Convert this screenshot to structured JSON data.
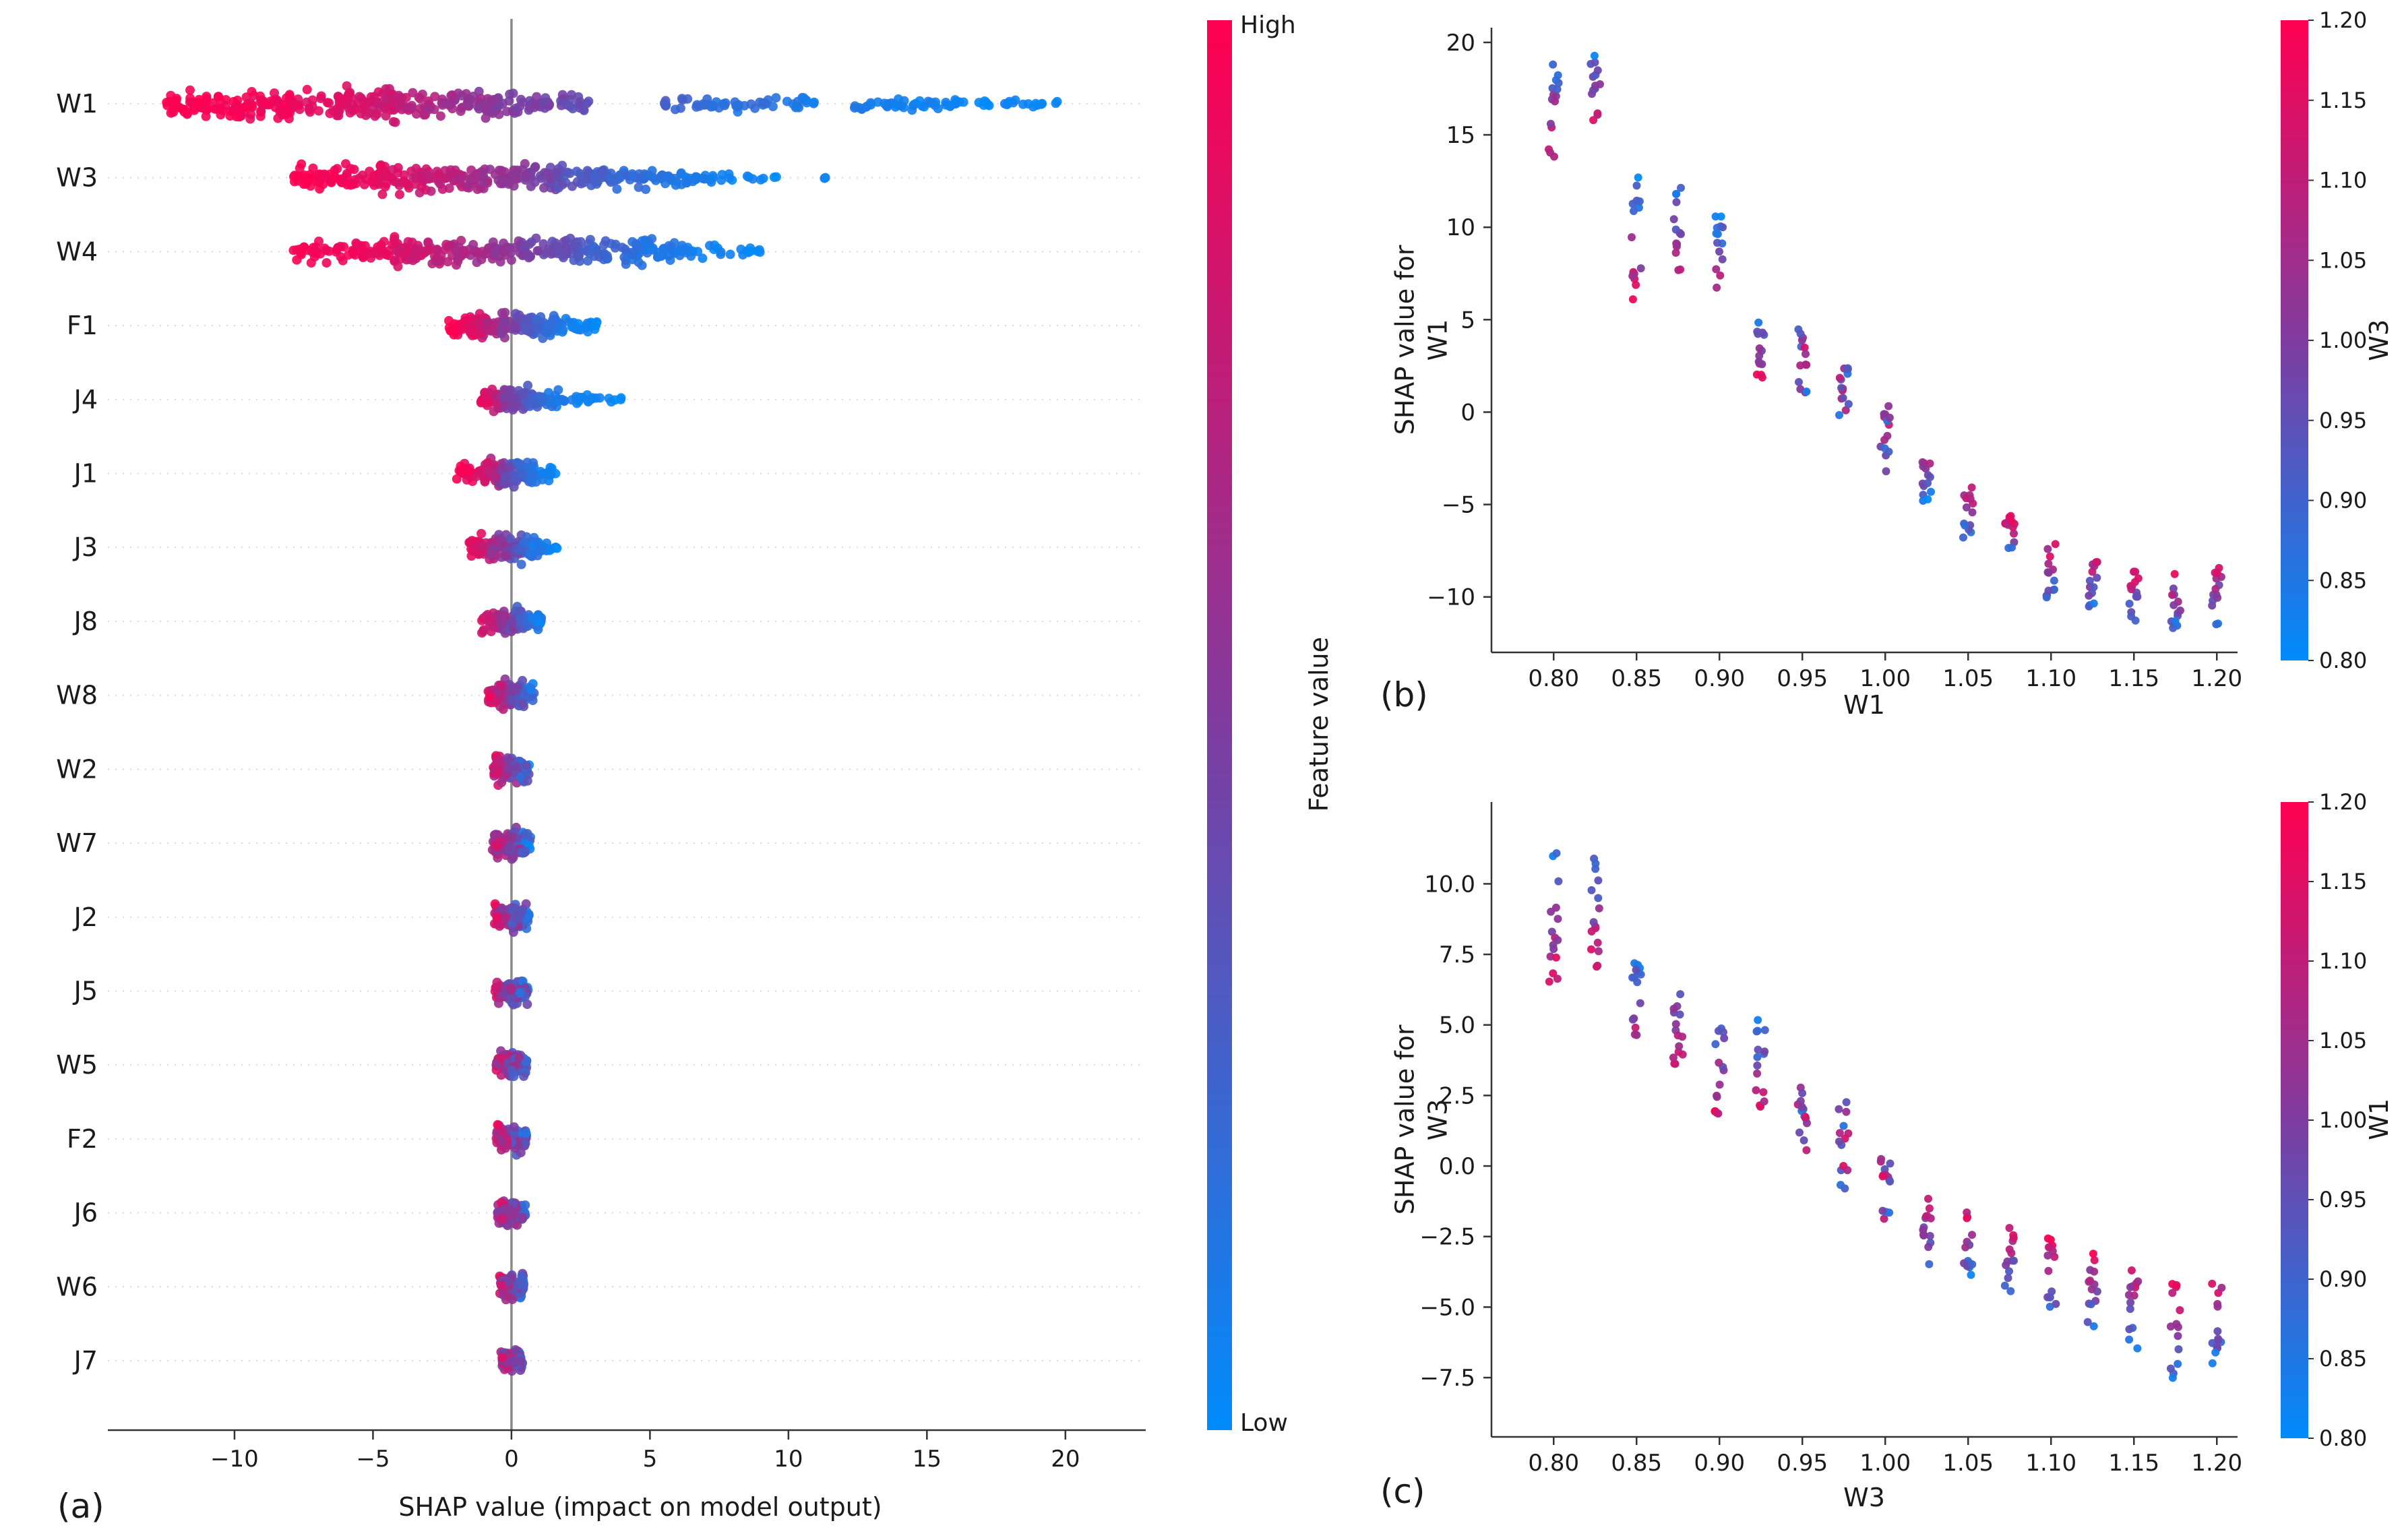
{
  "colors": {
    "background": "#ffffff",
    "text": "#1a1a1a",
    "axis_line": "#333333",
    "zero_line": "#8a8a8a",
    "grid_dotted": "#d9d9d9",
    "cmap_low": "#008bfb",
    "cmap_mid": "#7f3c9f",
    "cmap_high": "#ff0051"
  },
  "chart_data": [
    {
      "type": "scatter",
      "subtype": "shap_beeswarm_summary",
      "panel": "(a)",
      "xlabel": "SHAP value (impact on model output)",
      "xlim": [
        -13.6,
        22.9
      ],
      "x_ticks": [
        -10,
        -5,
        0,
        5,
        10,
        15,
        20
      ],
      "x_tick_labels": [
        "−10",
        "−5",
        "0",
        "5",
        "10",
        "15",
        "20"
      ],
      "colorbar": {
        "title": "Feature value",
        "high": "High",
        "low": "Low"
      },
      "grid": "dotted-horizontal",
      "features": [
        {
          "name": "W1",
          "clusters": [
            [
              -12.6,
              -8,
              110,
              1,
              0.93,
              30,
              0.08
            ],
            [
              -8.2,
              -4,
              100,
              0.93,
              0.78,
              33,
              0.1
            ],
            [
              -4.5,
              -1.5,
              60,
              0.8,
              0.58,
              28,
              0.12
            ],
            [
              -1.8,
              1.2,
              60,
              0.6,
              0.45,
              26,
              0.12
            ],
            [
              0.8,
              2.8,
              32,
              0.5,
              0.36,
              20,
              0.1
            ],
            [
              5.5,
              8.5,
              32,
              0.28,
              0.14,
              13,
              0.08
            ],
            [
              8.5,
              11.2,
              26,
              0.2,
              0.08,
              12,
              0.08
            ],
            [
              12.3,
              15,
              30,
              0.12,
              0.04,
              12,
              0.06
            ],
            [
              15,
              17.3,
              22,
              0.08,
              0.02,
              10,
              0.05
            ],
            [
              17.8,
              21.2,
              15,
              0.06,
              0,
              7,
              0.05
            ]
          ]
        },
        {
          "name": "W3",
          "clusters": [
            [
              -7.9,
              -4.5,
              70,
              1,
              0.9,
              26,
              0.08
            ],
            [
              -4.8,
              -2,
              65,
              0.9,
              0.72,
              30,
              0.1
            ],
            [
              -2.2,
              -0.3,
              40,
              0.75,
              0.55,
              24,
              0.12
            ],
            [
              -0.5,
              1.8,
              50,
              0.58,
              0.4,
              26,
              0.12
            ],
            [
              1.6,
              4.2,
              60,
              0.38,
              0.2,
              24,
              0.1
            ],
            [
              4.2,
              6.5,
              45,
              0.22,
              0.08,
              20,
              0.08
            ],
            [
              6.5,
              8.2,
              18,
              0.12,
              0.03,
              10,
              0.06
            ],
            [
              8.4,
              9.7,
              7,
              0.08,
              0.01,
              5,
              0.04
            ],
            [
              11.3,
              11.6,
              2,
              0.05,
              0,
              3,
              0.03
            ]
          ]
        },
        {
          "name": "W4",
          "clusters": [
            [
              -7.9,
              -4.2,
              65,
              1,
              0.88,
              24,
              0.08
            ],
            [
              -4.5,
              -1.8,
              70,
              0.88,
              0.68,
              28,
              0.1
            ],
            [
              -2,
              0.5,
              50,
              0.7,
              0.5,
              24,
              0.12
            ],
            [
              0.3,
              2.5,
              55,
              0.5,
              0.32,
              24,
              0.12
            ],
            [
              2.4,
              5.2,
              70,
              0.3,
              0.12,
              26,
              0.1
            ],
            [
              5.2,
              7.5,
              35,
              0.15,
              0.04,
              18,
              0.07
            ],
            [
              7.5,
              9.1,
              12,
              0.08,
              0,
              8,
              0.05
            ]
          ]
        },
        {
          "name": "F1",
          "clusters": [
            [
              -2.3,
              -1,
              55,
              1,
              0.82,
              22,
              0.1
            ],
            [
              -1.2,
              -0.2,
              45,
              0.82,
              0.6,
              24,
              0.12
            ],
            [
              -0.4,
              0.6,
              35,
              0.55,
              0.38,
              22,
              0.12
            ],
            [
              0.5,
              1.7,
              55,
              0.32,
              0.12,
              24,
              0.1
            ],
            [
              1.7,
              3.1,
              30,
              0.12,
              0,
              13,
              0.06
            ]
          ]
        },
        {
          "name": "J4",
          "clusters": [
            [
              -1.1,
              -0.2,
              50,
              0.95,
              0.6,
              24,
              0.15
            ],
            [
              -0.3,
              0.7,
              45,
              0.55,
              0.3,
              26,
              0.15
            ],
            [
              0.6,
              1.7,
              35,
              0.28,
              0.1,
              18,
              0.1
            ],
            [
              1.7,
              2.9,
              16,
              0.12,
              0.03,
              9,
              0.06
            ],
            [
              2.9,
              4.2,
              8,
              0.06,
              0,
              5,
              0.04
            ]
          ]
        },
        {
          "name": "J1",
          "clusters": [
            [
              -2,
              -0.9,
              35,
              1,
              0.8,
              18,
              0.1
            ],
            [
              -1,
              -0.1,
              45,
              0.8,
              0.5,
              26,
              0.2
            ],
            [
              -0.3,
              0.8,
              55,
              0.45,
              0.15,
              28,
              0.2
            ],
            [
              0.7,
              1.6,
              25,
              0.15,
              0,
              14,
              0.08
            ]
          ]
        },
        {
          "name": "J3",
          "clusters": [
            [
              -1.6,
              -0.6,
              40,
              0.95,
              0.72,
              22,
              0.15
            ],
            [
              -0.8,
              0.4,
              60,
              0.7,
              0.3,
              28,
              0.25
            ],
            [
              0.3,
              1,
              35,
              0.3,
              0.1,
              22,
              0.15
            ],
            [
              0.9,
              1.7,
              18,
              0.12,
              0,
              10,
              0.08
            ]
          ]
        },
        {
          "name": "J8",
          "clusters": [
            [
              -1.1,
              -0.3,
              45,
              0.9,
              0.55,
              24,
              0.2
            ],
            [
              -0.4,
              0.4,
              50,
              0.6,
              0.3,
              28,
              0.25
            ],
            [
              0.3,
              1.1,
              35,
              0.3,
              0.05,
              20,
              0.15
            ]
          ]
        },
        {
          "name": "W8",
          "clusters": [
            [
              -0.85,
              0,
              55,
              0.85,
              0.5,
              26,
              0.3
            ],
            [
              -0.1,
              0.85,
              55,
              0.5,
              0.15,
              26,
              0.3
            ]
          ]
        },
        {
          "name": "W2",
          "clusters": [
            [
              -0.65,
              0.65,
              105,
              0.8,
              0.2,
              27,
              0.45
            ]
          ]
        },
        {
          "name": "W7",
          "clusters": [
            [
              -0.7,
              0.7,
              105,
              0.8,
              0.2,
              27,
              0.45
            ]
          ]
        },
        {
          "name": "J2",
          "clusters": [
            [
              -0.65,
              0.65,
              100,
              0.75,
              0.25,
              26,
              0.45
            ]
          ]
        },
        {
          "name": "J5",
          "clusters": [
            [
              -0.6,
              0.6,
              95,
              0.75,
              0.25,
              26,
              0.45
            ]
          ]
        },
        {
          "name": "W5",
          "clusters": [
            [
              -0.55,
              0.55,
              95,
              0.7,
              0.3,
              26,
              0.45
            ]
          ]
        },
        {
          "name": "F2",
          "clusters": [
            [
              -0.55,
              0.55,
              90,
              0.75,
              0.25,
              25,
              0.45
            ]
          ]
        },
        {
          "name": "J6",
          "clusters": [
            [
              -0.5,
              0.5,
              90,
              0.7,
              0.3,
              25,
              0.45
            ]
          ]
        },
        {
          "name": "W6",
          "clusters": [
            [
              -0.45,
              0.45,
              85,
              0.7,
              0.3,
              24,
              0.45
            ]
          ]
        },
        {
          "name": "J7",
          "clusters": [
            [
              -0.4,
              0.4,
              80,
              0.7,
              0.3,
              23,
              0.45
            ]
          ]
        }
      ]
    },
    {
      "type": "scatter",
      "subtype": "shap_dependence",
      "panel": "(b)",
      "xlabel": "W1",
      "ylabel_lines": [
        "SHAP value for",
        "W1"
      ],
      "xlim": [
        0.7625,
        1.2125
      ],
      "ylim": [
        -13.0,
        20.8
      ],
      "x_ticks": [
        0.8,
        0.85,
        0.9,
        0.95,
        1.0,
        1.05,
        1.1,
        1.15,
        1.2
      ],
      "x_tick_labels": [
        "0.80",
        "0.85",
        "0.90",
        "0.95",
        "1.00",
        "1.05",
        "1.10",
        "1.15",
        "1.20"
      ],
      "y_ticks": [
        20,
        15,
        10,
        5,
        0,
        -5,
        -10
      ],
      "y_tick_labels": [
        "20",
        "15",
        "10",
        "5",
        "0",
        "−5",
        "−10"
      ],
      "colorbar": {
        "title": "W3",
        "vmin": 0.8,
        "vmax": 1.2,
        "ticks": [
          1.2,
          1.15,
          1.1,
          1.05,
          1.0,
          0.95,
          0.9,
          0.85,
          0.8
        ],
        "tick_labels": [
          "1.20",
          "1.15",
          "1.10",
          "1.05",
          "1.00",
          "0.95",
          "0.90",
          "0.85",
          "0.80"
        ]
      },
      "columns": [
        [
          0.8,
          13.8,
          20.0,
          15,
          "blue-top"
        ],
        [
          0.825,
          15.0,
          19.6,
          14,
          "blue-top"
        ],
        [
          0.85,
          5.8,
          13.0,
          15,
          "blue-top"
        ],
        [
          0.875,
          7.5,
          12.6,
          14,
          "blue-top"
        ],
        [
          0.9,
          6.5,
          10.6,
          14,
          "blue-top"
        ],
        [
          0.925,
          1.8,
          5.0,
          14,
          "blue-top"
        ],
        [
          0.95,
          1.0,
          4.6,
          14,
          "mix"
        ],
        [
          0.975,
          -1.0,
          2.5,
          14,
          "mix"
        ],
        [
          1.0,
          -3.2,
          0.5,
          14,
          "mix"
        ],
        [
          1.025,
          -4.8,
          -2.0,
          14,
          "blue-bottom"
        ],
        [
          1.05,
          -6.8,
          -4.0,
          14,
          "blue-bottom"
        ],
        [
          1.075,
          -8.2,
          -5.5,
          14,
          "blue-bottom"
        ],
        [
          1.1,
          -10.2,
          -7.0,
          14,
          "blue-bottom"
        ],
        [
          1.125,
          -10.8,
          -7.5,
          14,
          "blue-bottom"
        ],
        [
          1.15,
          -11.5,
          -8.5,
          14,
          "blue-bottom"
        ],
        [
          1.175,
          -11.8,
          -8.5,
          14,
          "blue-bottom"
        ],
        [
          1.2,
          -11.5,
          -8.0,
          14,
          "blue-bottom"
        ]
      ]
    },
    {
      "type": "scatter",
      "subtype": "shap_dependence",
      "panel": "(c)",
      "xlabel": "W3",
      "ylabel_lines": [
        "SHAP value for",
        "W3"
      ],
      "xlim": [
        0.7625,
        1.2125
      ],
      "ylim": [
        -9.6,
        12.9
      ],
      "x_ticks": [
        0.8,
        0.85,
        0.9,
        0.95,
        1.0,
        1.05,
        1.1,
        1.15,
        1.2
      ],
      "x_tick_labels": [
        "0.80",
        "0.85",
        "0.90",
        "0.95",
        "1.00",
        "1.05",
        "1.10",
        "1.15",
        "1.20"
      ],
      "y_ticks": [
        10,
        7.5,
        5,
        2.5,
        0,
        -2.5,
        -5,
        -7.5
      ],
      "y_tick_labels": [
        "10.0",
        "7.5",
        "5.0",
        "2.5",
        "0.0",
        "−2.5",
        "−5.0",
        "−7.5"
      ],
      "colorbar": {
        "title": "W1",
        "vmin": 0.8,
        "vmax": 1.2,
        "ticks": [
          1.2,
          1.15,
          1.1,
          1.05,
          1.0,
          0.95,
          0.9,
          0.85,
          0.8
        ],
        "tick_labels": [
          "1.20",
          "1.15",
          "1.10",
          "1.05",
          "1.00",
          "0.95",
          "0.90",
          "0.85",
          "0.80"
        ]
      },
      "columns": [
        [
          0.8,
          6.5,
          11.2,
          16,
          "blue-top"
        ],
        [
          0.825,
          6.8,
          11.5,
          16,
          "blue-top"
        ],
        [
          0.85,
          3.8,
          7.6,
          15,
          "blue-top"
        ],
        [
          0.875,
          3.4,
          7.5,
          15,
          "blue-top"
        ],
        [
          0.9,
          1.8,
          5.6,
          15,
          "blue-top"
        ],
        [
          0.925,
          1.5,
          5.2,
          15,
          "blue-top"
        ],
        [
          0.95,
          0.5,
          3.0,
          14,
          "mix"
        ],
        [
          0.975,
          -0.8,
          2.5,
          14,
          "mix"
        ],
        [
          1.0,
          -2.2,
          0.5,
          14,
          "mix"
        ],
        [
          1.025,
          -3.6,
          -1.0,
          14,
          "blue-bottom"
        ],
        [
          1.05,
          -4.2,
          -1.5,
          14,
          "blue-bottom"
        ],
        [
          1.075,
          -4.6,
          -2.0,
          14,
          "blue-bottom"
        ],
        [
          1.1,
          -5.6,
          -2.5,
          14,
          "blue-bottom"
        ],
        [
          1.125,
          -5.8,
          -3.0,
          14,
          "blue-bottom"
        ],
        [
          1.15,
          -6.6,
          -3.5,
          14,
          "blue-bottom"
        ],
        [
          1.175,
          -7.6,
          -4.0,
          14,
          "blue-bottom"
        ],
        [
          1.2,
          -7.2,
          -3.8,
          14,
          "blue-bottom"
        ]
      ]
    }
  ]
}
